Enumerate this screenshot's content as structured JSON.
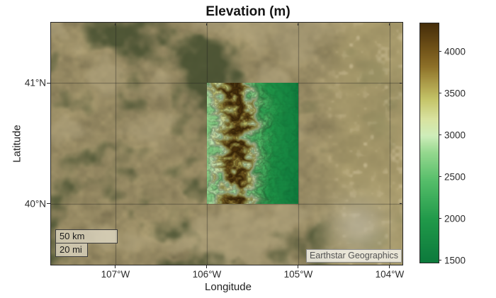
{
  "chart_data": {
    "type": "heatmap",
    "title": "Elevation (m)",
    "xlabel": "Longitude",
    "ylabel": "Latitude",
    "x_ticks": [
      {
        "label": "107°W",
        "lon": -107
      },
      {
        "label": "106°W",
        "lon": -106
      },
      {
        "label": "105°W",
        "lon": -105
      },
      {
        "label": "104°W",
        "lon": -104
      }
    ],
    "y_ticks": [
      {
        "label": "41°N",
        "lat": 41
      },
      {
        "label": "40°N",
        "lat": 40
      }
    ],
    "grid": true,
    "map_extent": {
      "lon_west": -107.705,
      "lon_east": -103.86,
      "lat_south": 39.496,
      "lat_north": 41.5
    },
    "overlay_extent": {
      "lon_west": -106,
      "lon_east": -105,
      "lat_south": 40,
      "lat_north": 41
    },
    "elevation_range_m": [
      1483,
      4346
    ],
    "basemap": "satellite",
    "colorbar": {
      "position": "right",
      "limits": [
        1483,
        4346
      ],
      "ticks": [
        {
          "value": 4000,
          "label": "4000"
        },
        {
          "value": 3500,
          "label": "3500"
        },
        {
          "value": 3000,
          "label": "3000"
        },
        {
          "value": 2500,
          "label": "2500"
        },
        {
          "value": 2000,
          "label": "2000"
        },
        {
          "value": 1500,
          "label": "1500"
        }
      ],
      "colormap": [
        [
          0.0,
          "#0d7a3c"
        ],
        [
          0.18,
          "#219a4a"
        ],
        [
          0.34,
          "#56be6a"
        ],
        [
          0.46,
          "#96d98f"
        ],
        [
          0.53,
          "#cfeebb"
        ],
        [
          0.6,
          "#d9e3a0"
        ],
        [
          0.68,
          "#c6c66a"
        ],
        [
          0.75,
          "#ad9d4a"
        ],
        [
          0.82,
          "#8e7129"
        ],
        [
          0.9,
          "#6f5118"
        ],
        [
          1.0,
          "#462e0a"
        ]
      ]
    }
  },
  "ui": {
    "scalebar_km": "50 km",
    "scalebar_mi": "20 mi",
    "attribution": "Earthstar Geographics",
    "colors": {
      "frame": "#262626",
      "tick_label": "#2b2b2b",
      "axis_label": "#202020",
      "title": "#151515",
      "graticule": "rgba(25,25,25,0.4)",
      "scalebar_bg": "rgba(224,218,198,0.75)",
      "attribution_bg": "rgba(245,242,233,0.85)",
      "attribution_text": "#525252"
    }
  }
}
